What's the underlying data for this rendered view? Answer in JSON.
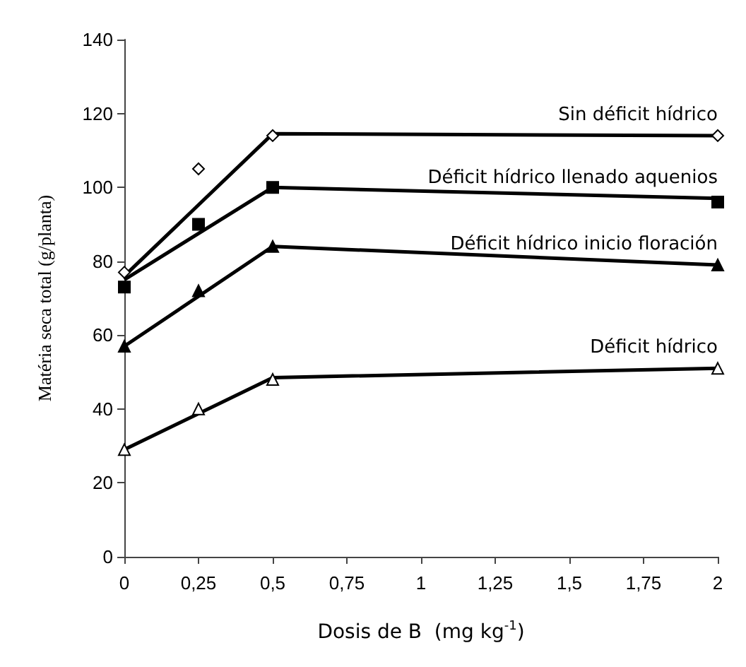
{
  "chart_data": {
    "type": "scatter",
    "xlabel": "Dosis de B  (mg kg$^{-1}$)",
    "ylabel": "Matéria seca total (g/planta)",
    "xlim": [
      0,
      2
    ],
    "xticks": [
      0,
      {
        "value": 0.25,
        "label": "0,25"
      },
      {
        "value": 0.5,
        "label": "0,5"
      },
      {
        "value": 0.75,
        "label": "0,75"
      },
      1,
      {
        "value": 1.25,
        "label": "1,25"
      },
      {
        "value": 1.5,
        "label": "1,5"
      },
      {
        "value": 1.75,
        "label": "1,75"
      },
      2
    ],
    "ylim": [
      0,
      140
    ],
    "yticks": [
      0,
      20,
      40,
      60,
      80,
      100,
      120,
      140
    ],
    "grid": false,
    "legend": false,
    "series": [
      {
        "color": "#ffffff",
        "marker": "diamond",
        "x": [
          0,
          0.25,
          0.5,
          2
        ],
        "values": [
          77,
          105,
          114,
          114
        ]
      },
      {
        "color": "#000000",
        "marker": "square",
        "x": [
          0,
          0.25,
          0.5,
          2
        ],
        "values": [
          73,
          90,
          100,
          96
        ]
      },
      {
        "color": "#000000",
        "marker": "triangle",
        "x": [
          0,
          0.25,
          0.5,
          2
        ],
        "values": [
          57,
          72,
          84,
          79
        ]
      },
      {
        "color": "#ffffff",
        "marker": "triangle",
        "x": [
          0,
          0.25,
          0.5,
          2
        ],
        "values": [
          29,
          40,
          48,
          51
        ]
      },
      {
        "type": "line",
        "name": "Sin déficit hídrico",
        "color": "#000000",
        "marker": "none",
        "x": [
          0,
          0.5,
          2
        ],
        "values": [
          76,
          114.5,
          114
        ]
      },
      {
        "type": "line",
        "name": "Déficit hídrico llenado aquenios",
        "color": "#000000",
        "marker": "none",
        "x": [
          0,
          0.5,
          2
        ],
        "values": [
          75,
          100,
          97
        ]
      },
      {
        "type": "line",
        "name": "Déficit hídrico inicio floración",
        "color": "#000000",
        "marker": "none",
        "x": [
          0,
          0.5,
          2
        ],
        "values": [
          57,
          84,
          79
        ]
      },
      {
        "type": "line",
        "name": "Déficit hídrico",
        "color": "#000000",
        "marker": "none",
        "x": [
          0,
          0.5,
          2
        ],
        "values": [
          29,
          48.5,
          51
        ]
      }
    ]
  }
}
